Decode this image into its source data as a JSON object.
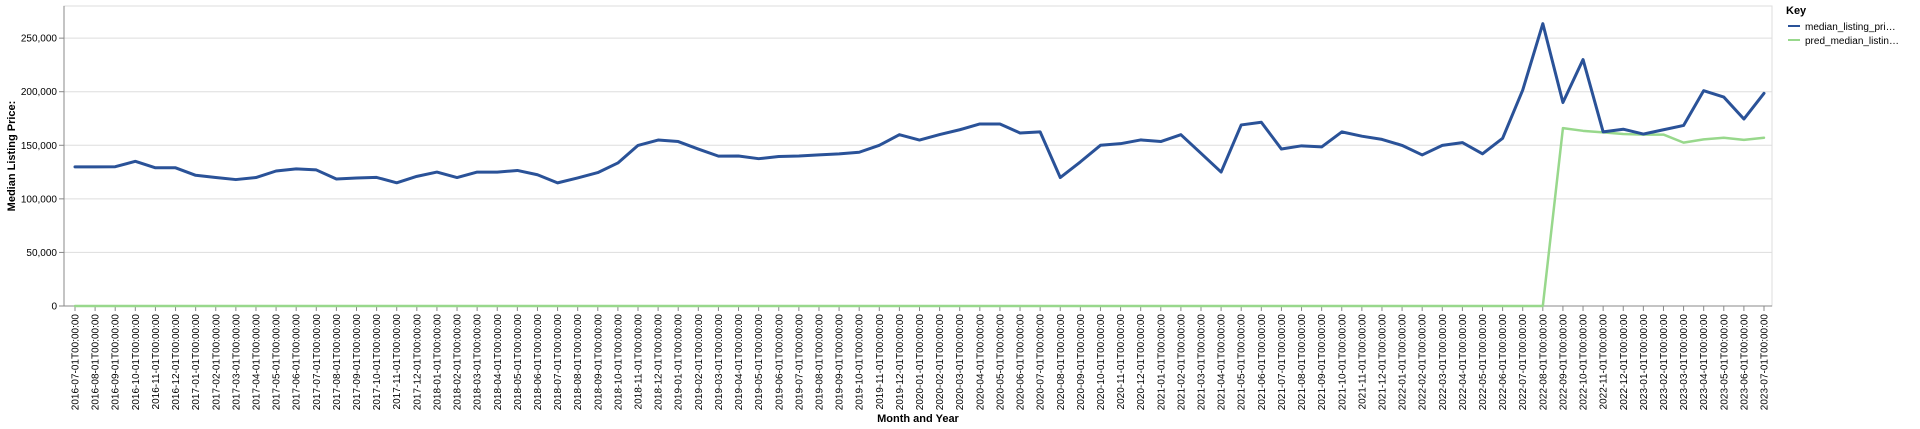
{
  "chart_data": {
    "type": "line",
    "xlabel": "Month and Year",
    "ylabel": "Median Listing Price:",
    "ylim": [
      0,
      280000
    ],
    "yticks": [
      0,
      50000,
      100000,
      150000,
      200000,
      250000
    ],
    "ytick_labels": [
      "0",
      "50,000",
      "100,000",
      "150,000",
      "200,000",
      "250,000"
    ],
    "grid": true,
    "legend": {
      "title": "Key",
      "position": "top-right",
      "labels": [
        "median_listing_pri…",
        "pred_median_listin…"
      ]
    },
    "x": [
      "2016-07-01T00:00:00",
      "2016-08-01T00:00:00",
      "2016-09-01T00:00:00",
      "2016-10-01T00:00:00",
      "2016-11-01T00:00:00",
      "2016-12-01T00:00:00",
      "2017-01-01T00:00:00",
      "2017-02-01T00:00:00",
      "2017-03-01T00:00:00",
      "2017-04-01T00:00:00",
      "2017-05-01T00:00:00",
      "2017-06-01T00:00:00",
      "2017-07-01T00:00:00",
      "2017-08-01T00:00:00",
      "2017-09-01T00:00:00",
      "2017-10-01T00:00:00",
      "2017-11-01T00:00:00",
      "2017-12-01T00:00:00",
      "2018-01-01T00:00:00",
      "2018-02-01T00:00:00",
      "2018-03-01T00:00:00",
      "2018-04-01T00:00:00",
      "2018-05-01T00:00:00",
      "2018-06-01T00:00:00",
      "2018-07-01T00:00:00",
      "2018-08-01T00:00:00",
      "2018-09-01T00:00:00",
      "2018-10-01T00:00:00",
      "2018-11-01T00:00:00",
      "2018-12-01T00:00:00",
      "2019-01-01T00:00:00",
      "2019-02-01T00:00:00",
      "2019-03-01T00:00:00",
      "2019-04-01T00:00:00",
      "2019-05-01T00:00:00",
      "2019-06-01T00:00:00",
      "2019-07-01T00:00:00",
      "2019-08-01T00:00:00",
      "2019-09-01T00:00:00",
      "2019-10-01T00:00:00",
      "2019-11-01T00:00:00",
      "2019-12-01T00:00:00",
      "2020-01-01T00:00:00",
      "2020-02-01T00:00:00",
      "2020-03-01T00:00:00",
      "2020-04-01T00:00:00",
      "2020-05-01T00:00:00",
      "2020-06-01T00:00:00",
      "2020-07-01T00:00:00",
      "2020-08-01T00:00:00",
      "2020-09-01T00:00:00",
      "2020-10-01T00:00:00",
      "2020-11-01T00:00:00",
      "2020-12-01T00:00:00",
      "2021-01-01T00:00:00",
      "2021-02-01T00:00:00",
      "2021-03-01T00:00:00",
      "2021-04-01T00:00:00",
      "2021-05-01T00:00:00",
      "2021-06-01T00:00:00",
      "2021-07-01T00:00:00",
      "2021-08-01T00:00:00",
      "2021-09-01T00:00:00",
      "2021-10-01T00:00:00",
      "2021-11-01T00:00:00",
      "2021-12-01T00:00:00",
      "2022-01-01T00:00:00",
      "2022-02-01T00:00:00",
      "2022-03-01T00:00:00",
      "2022-04-01T00:00:00",
      "2022-05-01T00:00:00",
      "2022-06-01T00:00:00",
      "2022-07-01T00:00:00",
      "2022-08-01T00:00:00",
      "2022-09-01T00:00:00",
      "2022-10-01T00:00:00",
      "2022-11-01T00:00:00",
      "2022-12-01T00:00:00",
      "2023-01-01T00:00:00",
      "2023-02-01T00:00:00",
      "2023-03-01T00:00:00",
      "2023-04-01T00:00:00",
      "2023-05-01T00:00:00",
      "2023-06-01T00:00:00",
      "2023-07-01T00:00:00"
    ],
    "series": [
      {
        "name": "median_listing_pri…",
        "color": "#2a5298",
        "values": [
          129900,
          129900,
          130000,
          135000,
          129000,
          129000,
          122000,
          119900,
          118000,
          119900,
          126000,
          128000,
          127000,
          118500,
          119500,
          120000,
          115000,
          121000,
          125000,
          119900,
          125000,
          125000,
          126500,
          122500,
          114900,
          119500,
          124500,
          133500,
          149900,
          154900,
          153500,
          146500,
          139900,
          140000,
          137500,
          139500,
          140000,
          141000,
          142000,
          143500,
          150000,
          159900,
          154900,
          160000,
          164500,
          169900,
          169900,
          161500,
          162500,
          119900,
          134500,
          150000,
          151500,
          155000,
          153500,
          159900,
          142500,
          125000,
          169000,
          171500,
          146500,
          149500,
          148500,
          162500,
          158500,
          155500,
          149900,
          141000,
          149900,
          152500,
          142000,
          156500,
          201500,
          263500,
          189900,
          230000,
          162500,
          165000,
          160500,
          164500,
          168500,
          201000,
          195000,
          174500,
          198500
        ]
      },
      {
        "name": "pred_median_listin…",
        "color": "#98d88c",
        "values": [
          0,
          0,
          0,
          0,
          0,
          0,
          0,
          0,
          0,
          0,
          0,
          0,
          0,
          0,
          0,
          0,
          0,
          0,
          0,
          0,
          0,
          0,
          0,
          0,
          0,
          0,
          0,
          0,
          0,
          0,
          0,
          0,
          0,
          0,
          0,
          0,
          0,
          0,
          0,
          0,
          0,
          0,
          0,
          0,
          0,
          0,
          0,
          0,
          0,
          0,
          0,
          0,
          0,
          0,
          0,
          0,
          0,
          0,
          0,
          0,
          0,
          0,
          0,
          0,
          0,
          0,
          0,
          0,
          0,
          0,
          0,
          0,
          0,
          0,
          166000,
          163500,
          162000,
          160500,
          160000,
          160000,
          152500,
          155500,
          157000,
          155000,
          157000
        ]
      }
    ]
  }
}
